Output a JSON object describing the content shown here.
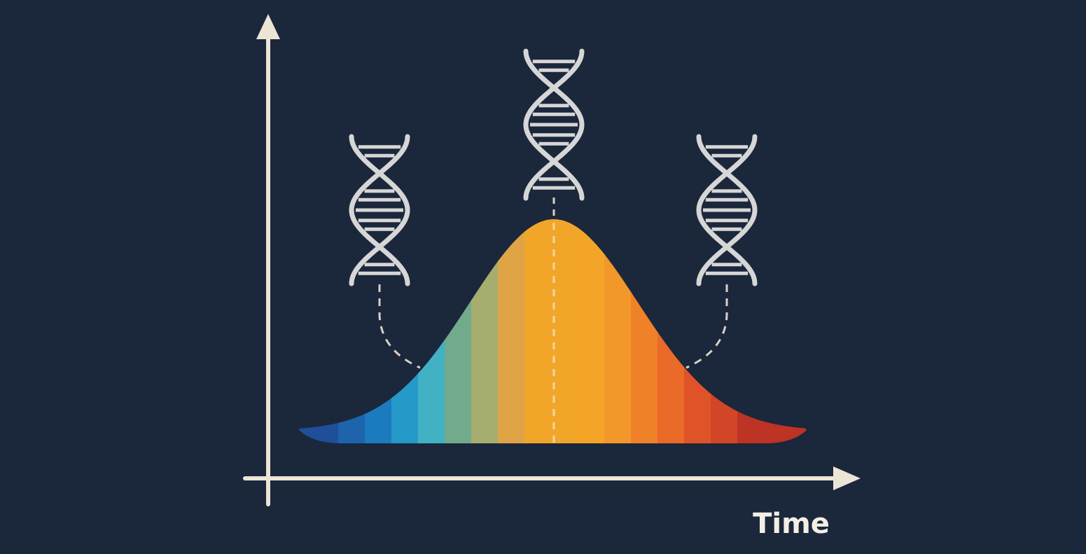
{
  "diagram": {
    "x_axis_label": "Time",
    "colors": {
      "background": "#1b273b",
      "axis": "#ece5d6",
      "dna": "#d6d6d6",
      "connector": "#d9d2c4",
      "curve_bands": [
        "#1e4f98",
        "#1d64ad",
        "#1c7bbf",
        "#2599c8",
        "#41b1c3",
        "#72aa8c",
        "#a7ad6f",
        "#dea446",
        "#f1a62a",
        "#f4a527",
        "#f2972a",
        "#ef8128",
        "#ea6a28",
        "#e05329",
        "#d34527",
        "#bd3324",
        "#c83c22",
        "#d44a20"
      ]
    },
    "icons": [
      "dna-helix-icon",
      "dna-helix-icon",
      "dna-helix-icon"
    ]
  }
}
